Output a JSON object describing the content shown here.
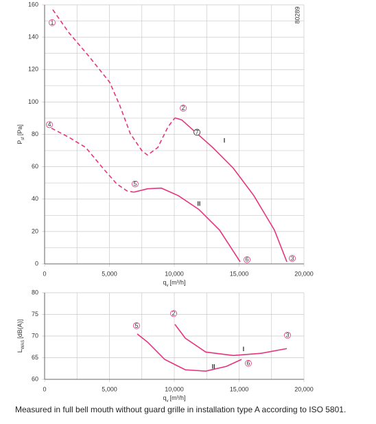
{
  "chart_data": [
    {
      "type": "line",
      "code": "80289",
      "xlabel": {
        "main": "q",
        "sub": "v",
        "unit": "[m³/h]"
      },
      "ylabel": {
        "main": "P",
        "sub": "sf",
        "unit": "[Pa]"
      },
      "xlim": [
        0,
        20000
      ],
      "ylim": [
        0,
        160
      ],
      "xticks": [
        0,
        {
          "value": 5000,
          "label": "5,000"
        },
        {
          "value": 10000,
          "label": "10,000"
        },
        {
          "value": 15000,
          "label": "15,000"
        },
        {
          "value": 20000,
          "label": "20,000"
        }
      ],
      "minor_xticks": [
        2500,
        7500,
        12500,
        17500
      ],
      "yticks": [
        0,
        20,
        40,
        60,
        80,
        100,
        120,
        140,
        160
      ],
      "minor_yticks": [
        10,
        30,
        50,
        70,
        90,
        110,
        130,
        150
      ],
      "grid": true,
      "series": [
        {
          "color": "#e5337d",
          "dashed": true,
          "x": [
            630,
            1850,
            3440,
            5030,
            5820,
            6610,
            7510,
            7940,
            8730,
            9520,
            10050
          ],
          "values": [
            157,
            143,
            128,
            112,
            97.4,
            80.4,
            69.8,
            67.2,
            71.9,
            84.7,
            90.2
          ]
        },
        {
          "color": "#e5337d",
          "dashed": false,
          "x": [
            10050,
            10580,
            11640,
            12960,
            14550,
            16140,
            17720,
            18680
          ],
          "values": [
            90.2,
            88.9,
            81.3,
            71.9,
            59.1,
            42.1,
            20.9,
            1.3
          ]
        },
        {
          "color": "#e5337d",
          "dashed": true,
          "x": [
            530,
            1850,
            3170,
            4500,
            5560,
            6350,
            6880
          ],
          "values": [
            83.8,
            78.3,
            71.9,
            59.1,
            49.4,
            45.1,
            44.3
          ]
        },
        {
          "color": "#e5337d",
          "dashed": false,
          "x": [
            6880,
            7940,
            9000,
            10320,
            11900,
            13490,
            15080
          ],
          "values": [
            44.3,
            46.4,
            46.8,
            42.1,
            33.6,
            20.9,
            1.3
          ]
        }
      ],
      "annotations": [
        {
          "text": "1",
          "x": 580,
          "y": 149,
          "circle": "#e5337d"
        },
        {
          "text": "2",
          "x": 10690,
          "y": 96.2,
          "circle": "#e5337d"
        },
        {
          "text": "3",
          "x": 19100,
          "y": 3.4,
          "circle": "#e5337d"
        },
        {
          "text": "4",
          "x": 370,
          "y": 86,
          "circle": "#e5337d"
        },
        {
          "text": "5",
          "x": 6980,
          "y": 49.4,
          "circle": "#e5337d"
        },
        {
          "text": "6",
          "x": 15610,
          "y": 2.6,
          "circle": "#e5337d"
        },
        {
          "text": "7",
          "x": 11750,
          "y": 81.3,
          "circle": "#222222"
        },
        {
          "text": "I",
          "x": 13860,
          "y": 76.2,
          "color": "#e5337d"
        },
        {
          "text": "II",
          "x": 11900,
          "y": 37,
          "color": "#e5337d"
        }
      ]
    },
    {
      "type": "line",
      "xlabel": {
        "main": "q",
        "sub": "v",
        "unit": "[m³/h]"
      },
      "ylabel": {
        "main": "L",
        "sub": "WAS",
        "unit": "[dB(A)]"
      },
      "xlim": [
        0,
        20000
      ],
      "ylim": [
        60,
        80
      ],
      "xticks": [
        0,
        {
          "value": 5000,
          "label": "5,000"
        },
        {
          "value": 10000,
          "label": "10,000"
        },
        {
          "value": 15000,
          "label": "15,000"
        },
        {
          "value": 20000,
          "label": "20,000"
        }
      ],
      "minor_xticks": [
        2500,
        7500,
        12500,
        17500
      ],
      "yticks": [
        60,
        65,
        70,
        75,
        80
      ],
      "grid": true,
      "series": [
        {
          "color": "#e5337d",
          "dashed": false,
          "x": [
            10050,
            10850,
            12430,
            14550,
            16670,
            18680
          ],
          "values": [
            72.7,
            69.5,
            66.3,
            65.5,
            66,
            67.1
          ]
        },
        {
          "color": "#e5337d",
          "dashed": false,
          "x": [
            7140,
            7940,
            9260,
            10850,
            12430,
            14020,
            15190
          ],
          "values": [
            70.5,
            68.6,
            64.6,
            62.2,
            61.9,
            63,
            64.6
          ]
        }
      ],
      "annotations": [
        {
          "text": "5",
          "x": 7090,
          "y": 72.4,
          "circle": "#e5337d"
        },
        {
          "text": "2",
          "x": 9950,
          "y": 75.2,
          "circle": "#e5337d"
        },
        {
          "text": "3",
          "x": 18730,
          "y": 70.2,
          "circle": "#e5337d"
        },
        {
          "text": "6",
          "x": 15710,
          "y": 63.7,
          "circle": "#e5337d"
        },
        {
          "text": "I",
          "x": 15340,
          "y": 67,
          "color": "#e5337d"
        },
        {
          "text": "II",
          "x": 13020,
          "y": 62.9,
          "color": "#e5337d"
        }
      ]
    }
  ],
  "caption": "Measured in full bell mouth without guard grille in installation type A according to ISO 5801."
}
